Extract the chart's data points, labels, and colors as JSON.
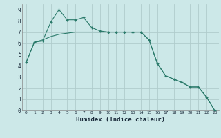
{
  "title": "",
  "xlabel": "Humidex (Indice chaleur)",
  "xlim": [
    -0.5,
    23.5
  ],
  "ylim": [
    0,
    9.5
  ],
  "xticks": [
    0,
    1,
    2,
    3,
    4,
    5,
    6,
    7,
    8,
    9,
    10,
    11,
    12,
    13,
    14,
    15,
    16,
    17,
    18,
    19,
    20,
    21,
    22,
    23
  ],
  "yticks": [
    0,
    1,
    2,
    3,
    4,
    5,
    6,
    7,
    8,
    9
  ],
  "bg_color": "#cce8e8",
  "grid_color": "#b0cccc",
  "line_color": "#2a7a6a",
  "line1_x": [
    0,
    1,
    2,
    3,
    4,
    5,
    6,
    7,
    8,
    9,
    10,
    11,
    12,
    13,
    14,
    15,
    16,
    17,
    18,
    19,
    20,
    21,
    22,
    23
  ],
  "line1_y": [
    4.3,
    6.1,
    6.2,
    7.9,
    9.0,
    8.1,
    8.1,
    8.3,
    7.4,
    7.1,
    7.0,
    7.0,
    7.0,
    7.0,
    7.0,
    6.3,
    4.2,
    3.1,
    2.8,
    2.5,
    2.1,
    2.1,
    1.2,
    0.0
  ],
  "line2_x": [
    0,
    1,
    2,
    3,
    4,
    5,
    6,
    7,
    8,
    9,
    10,
    11,
    12,
    13,
    14,
    15,
    16,
    17,
    18,
    19,
    20,
    21,
    22,
    23
  ],
  "line2_y": [
    4.3,
    6.1,
    6.3,
    6.6,
    6.8,
    6.9,
    7.0,
    7.0,
    7.0,
    7.0,
    7.0,
    7.0,
    7.0,
    7.0,
    7.0,
    6.3,
    4.2,
    3.1,
    2.8,
    2.5,
    2.1,
    2.1,
    1.2,
    0.0
  ]
}
